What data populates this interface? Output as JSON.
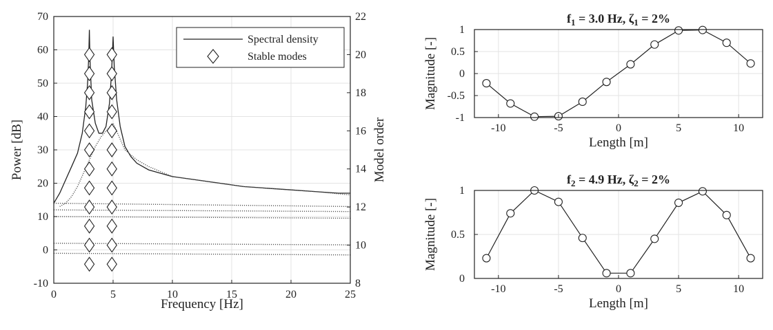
{
  "chart_data": [
    {
      "type": "line",
      "xlabel": "Frequency [Hz]",
      "ylabel": "Power [dB]",
      "ylabel_right": "Model order",
      "xlim": [
        0,
        25
      ],
      "ylim": [
        -10,
        70
      ],
      "ylim_right": [
        8,
        22
      ],
      "xticks": [
        0,
        5,
        10,
        15,
        20,
        25
      ],
      "yticks": [
        -10,
        0,
        10,
        20,
        30,
        40,
        50,
        60,
        70
      ],
      "yticks_right": [
        8,
        10,
        12,
        14,
        16,
        18,
        20,
        22
      ],
      "grid": true,
      "legend_position": "top-right",
      "legend": [
        "Spectral density",
        "Stable modes"
      ],
      "series": [
        {
          "name": "Spectral density",
          "style": "solid",
          "x": [
            0,
            0.5,
            1,
            1.5,
            2,
            2.4,
            2.7,
            2.85,
            2.95,
            3.0,
            3.05,
            3.2,
            3.5,
            3.8,
            4.1,
            4.4,
            4.7,
            4.85,
            4.95,
            5.0,
            5.1,
            5.3,
            5.6,
            6,
            6.5,
            7,
            8,
            9,
            10,
            12,
            14,
            16,
            18,
            20,
            22,
            24,
            25
          ],
          "y": [
            14,
            17,
            21,
            25,
            29,
            35,
            43,
            50,
            58,
            66,
            57,
            45,
            38,
            35,
            35,
            37,
            44,
            52,
            59,
            64,
            55,
            45,
            37,
            31,
            28,
            26,
            24,
            23,
            22,
            21,
            20,
            19,
            18.5,
            18,
            17.5,
            17,
            17
          ]
        },
        {
          "name": "",
          "style": "dotted",
          "x": [
            0.5,
            1,
            1.5,
            2,
            2.5,
            3,
            3.5,
            4,
            4.5,
            5,
            6,
            7,
            8,
            10,
            12,
            14,
            16,
            18,
            20,
            22,
            25
          ],
          "y": [
            13,
            14,
            16,
            19,
            23,
            27,
            31,
            34,
            36,
            38,
            30,
            27,
            25,
            22,
            21,
            20,
            19,
            18.5,
            18,
            17.5,
            16.5
          ]
        },
        {
          "name": "",
          "style": "dotted",
          "x": [
            0,
            25
          ],
          "y": [
            14,
            13
          ]
        },
        {
          "name": "",
          "style": "dotted",
          "x": [
            0,
            25
          ],
          "y": [
            12,
            11.5
          ]
        },
        {
          "name": "",
          "style": "dotted",
          "x": [
            0,
            25
          ],
          "y": [
            10,
            9.5
          ]
        },
        {
          "name": "",
          "style": "dotted",
          "x": [
            0,
            25
          ],
          "y": [
            2,
            1.5
          ]
        },
        {
          "name": "",
          "style": "dotted",
          "x": [
            0,
            25
          ],
          "y": [
            -1,
            -1.5
          ]
        }
      ],
      "stable_modes": {
        "name": "Stable modes",
        "axis": "right",
        "x": [
          3.0,
          4.9
        ],
        "model_orders": [
          9,
          10,
          11,
          12,
          13,
          14,
          15,
          16,
          17,
          18,
          19,
          20
        ]
      }
    },
    {
      "type": "line",
      "title_main": "f",
      "title_main_sub": "1",
      "title_mid": " = 3.0 Hz, ",
      "title_zeta": "ζ",
      "title_zeta_sub": "1",
      "title_end": " = 2%",
      "xlabel": "Length [m]",
      "ylabel": "Magnitude [-]",
      "xlim": [
        -12,
        12
      ],
      "ylim": [
        -1,
        1
      ],
      "xticks": [
        -10,
        -5,
        0,
        5,
        10
      ],
      "yticks": [
        -1,
        -0.5,
        0,
        0.5,
        1
      ],
      "ytick_labels": [
        "-1",
        "-0.5",
        "0",
        "0.5",
        "1"
      ],
      "grid": true,
      "series": [
        {
          "x": [
            -11,
            -9,
            -7,
            -5,
            -3,
            -1,
            1,
            3,
            5,
            7,
            9,
            11
          ],
          "values": [
            -0.22,
            -0.68,
            -0.98,
            -0.97,
            -0.64,
            -0.19,
            0.21,
            0.66,
            0.98,
            0.99,
            0.7,
            0.23
          ]
        }
      ]
    },
    {
      "type": "line",
      "title_main": "f",
      "title_main_sub": "2",
      "title_mid": " = 4.9 Hz, ",
      "title_zeta": "ζ",
      "title_zeta_sub": "2",
      "title_end": " = 2%",
      "xlabel": "Length [m]",
      "ylabel": "Magnitude [-]",
      "xlim": [
        -12,
        12
      ],
      "ylim": [
        0,
        1
      ],
      "xticks": [
        -10,
        -5,
        0,
        5,
        10
      ],
      "yticks": [
        0,
        0.5,
        1
      ],
      "ytick_labels": [
        "0",
        "0.5",
        "1"
      ],
      "grid": true,
      "series": [
        {
          "x": [
            -11,
            -9,
            -7,
            -5,
            -3,
            -1,
            1,
            3,
            5,
            7,
            9,
            11
          ],
          "values": [
            0.23,
            0.74,
            1.0,
            0.87,
            0.46,
            0.06,
            0.06,
            0.45,
            0.86,
            0.99,
            0.72,
            0.23
          ]
        }
      ]
    }
  ]
}
